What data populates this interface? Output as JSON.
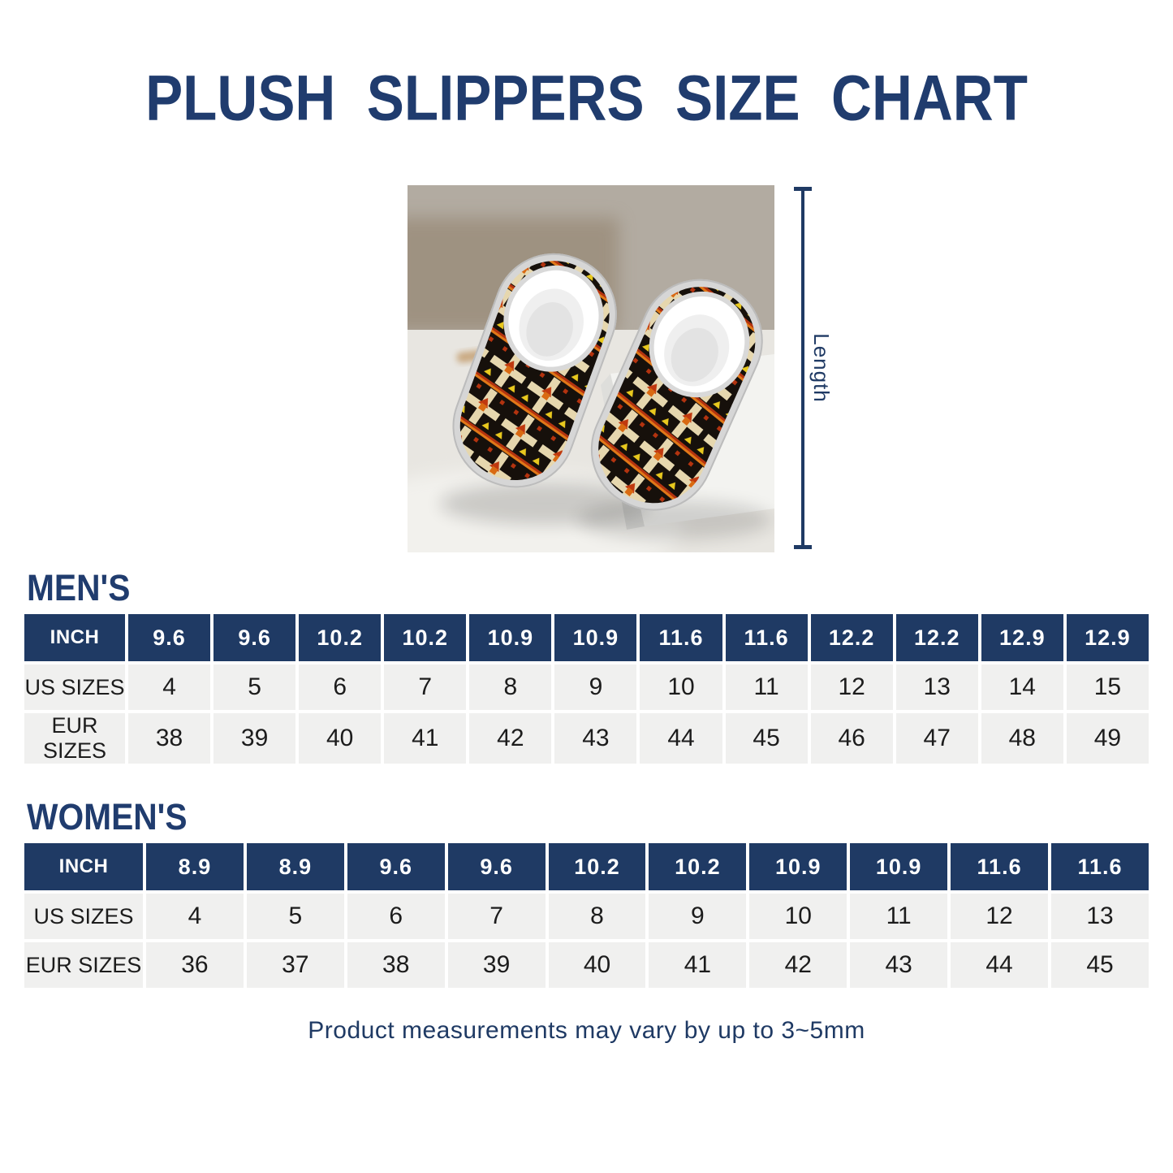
{
  "page": {
    "title": "PLUSH SLIPPERS SIZE CHART",
    "footer_note": "Product measurements may vary by up to 3~5mm"
  },
  "measurement": {
    "label": "Length"
  },
  "mens": {
    "heading": "MEN'S",
    "table": {
      "row_headers": [
        "INCH",
        "US SIZES",
        "EUR SIZES"
      ],
      "inch": [
        "9.6",
        "9.6",
        "10.2",
        "10.2",
        "10.9",
        "10.9",
        "11.6",
        "11.6",
        "12.2",
        "12.2",
        "12.9",
        "12.9"
      ],
      "us_sizes": [
        "4",
        "5",
        "6",
        "7",
        "8",
        "9",
        "10",
        "11",
        "12",
        "13",
        "14",
        "15"
      ],
      "eur_sizes": [
        "38",
        "39",
        "40",
        "41",
        "42",
        "43",
        "44",
        "45",
        "46",
        "47",
        "48",
        "49"
      ]
    }
  },
  "womens": {
    "heading": "WOMEN'S",
    "table": {
      "row_headers": [
        "INCH",
        "US SIZES",
        "EUR SIZES"
      ],
      "inch": [
        "8.9",
        "8.9",
        "9.6",
        "9.6",
        "10.2",
        "10.2",
        "10.9",
        "10.9",
        "11.6",
        "11.6"
      ],
      "us_sizes": [
        "4",
        "5",
        "6",
        "7",
        "8",
        "9",
        "10",
        "11",
        "12",
        "13"
      ],
      "eur_sizes": [
        "36",
        "37",
        "38",
        "39",
        "40",
        "41",
        "42",
        "43",
        "44",
        "45"
      ]
    }
  },
  "colors": {
    "navy": "#1f3a64",
    "navy_title": "#203c6e",
    "cell_gray": "#f0f0ef",
    "slipper_black": "#16100b",
    "slipper_cream": "#e6d7ae",
    "slipper_red": "#b3330f",
    "slipper_orange": "#e07818",
    "slipper_yellow": "#e8c81e"
  },
  "product_image": {
    "description": "Pair of plush slippers with black, cream, red and yellow tribal pattern, white fluffy lining and white soles"
  }
}
